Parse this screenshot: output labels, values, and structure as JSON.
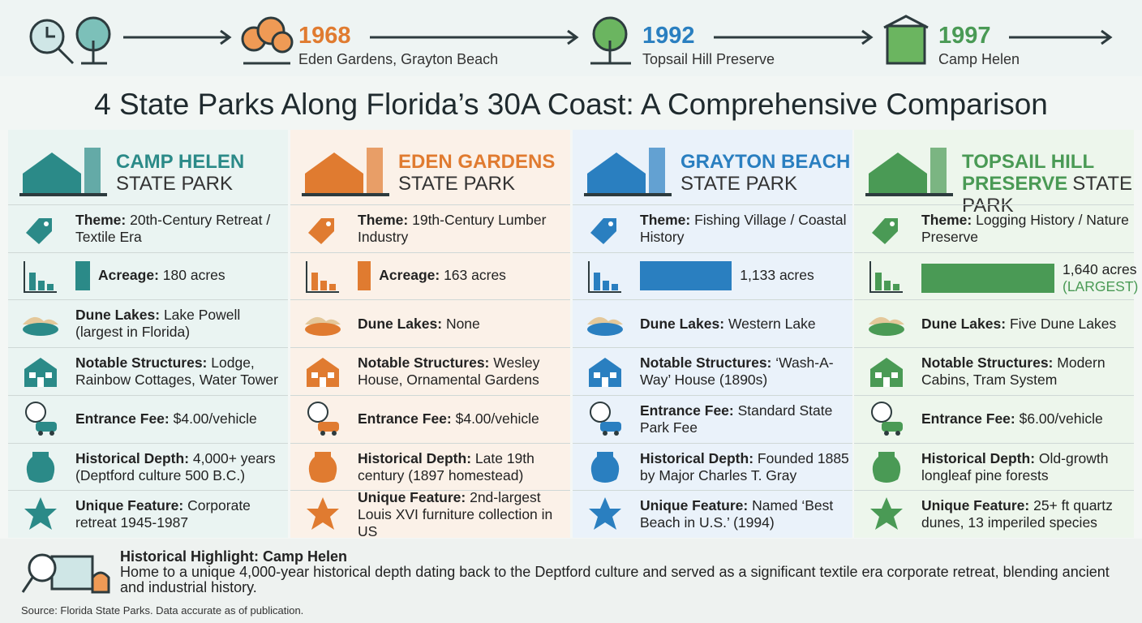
{
  "timeline": [
    {
      "year": "1968",
      "label": "Eden Gardens, Grayton Beach",
      "color": "#e07b30"
    },
    {
      "year": "1992",
      "label": "Topsail Hill Preserve",
      "color": "#2a7fc0"
    },
    {
      "year": "1997",
      "label": "Camp Helen",
      "color": "#4a9a55"
    }
  ],
  "title": "4 State Parks Along Florida’s 30A Coast: A Comprehensive Comparison",
  "parks": [
    {
      "color": "#2b8a88",
      "bg": "#eaf4f2",
      "name_lines": [
        [
          {
            "text": "CAMP HELEN",
            "accent": true
          }
        ],
        [
          {
            "text": "STATE PARK",
            "accent": false
          }
        ]
      ],
      "rows": [
        {
          "label": "Theme:",
          "text": "20th-Century Retreat / Textile Era"
        },
        {
          "label": "Acreage:",
          "value": 180,
          "text": "180 acres"
        },
        {
          "label": "Dune Lakes:",
          "text": "Lake Powell (largest in Florida)"
        },
        {
          "label": "Notable Structures:",
          "text": "Lodge, Rainbow Cottages, Water Tower"
        },
        {
          "label": "Entrance Fee:",
          "text": "$4.00/vehicle"
        },
        {
          "label": "Historical Depth:",
          "text": "4,000+ years (Deptford culture 500 B.C.)"
        },
        {
          "label": "Unique Feature:",
          "text": "Corporate retreat 1945-1987"
        }
      ]
    },
    {
      "color": "#e07b30",
      "bg": "#fbf1e8",
      "name_lines": [
        [
          {
            "text": "EDEN GARDENS",
            "accent": true
          }
        ],
        [
          {
            "text": "STATE PARK",
            "accent": false
          }
        ]
      ],
      "rows": [
        {
          "label": "Theme:",
          "text": "19th-Century Lumber Industry"
        },
        {
          "label": "Acreage:",
          "value": 163,
          "text": "163 acres"
        },
        {
          "label": "Dune Lakes:",
          "text": "None"
        },
        {
          "label": "Notable Structures:",
          "text": "Wesley House, Ornamental Gardens"
        },
        {
          "label": "Entrance Fee:",
          "text": "$4.00/vehicle"
        },
        {
          "label": "Historical Depth:",
          "text": "Late 19th century (1897 homestead)"
        },
        {
          "label": "Unique Feature:",
          "text": "2nd-largest Louis XVI furniture collection in US"
        }
      ]
    },
    {
      "color": "#2a7fc0",
      "bg": "#eaf2fa",
      "name_lines": [
        [
          {
            "text": "GRAYTON BEACH",
            "accent": true
          }
        ],
        [
          {
            "text": "STATE PARK",
            "accent": false
          }
        ]
      ],
      "rows": [
        {
          "label": "Theme:",
          "text": "Fishing Village / Coastal History"
        },
        {
          "value": 1133,
          "text": "1,133 acres"
        },
        {
          "label": "Dune Lakes:",
          "text": "Western Lake"
        },
        {
          "label": "Notable Structures:",
          "text": "‘Wash-A-Way’ House (1890s)"
        },
        {
          "label": "Entrance Fee:",
          "text": "Standard State Park Fee"
        },
        {
          "label": "Historical Depth:",
          "text": "Founded 1885 by Major Charles T. Gray"
        },
        {
          "label": "Unique Feature:",
          "text": "Named ‘Best Beach in U.S.’ (1994)"
        }
      ]
    },
    {
      "color": "#4a9a55",
      "bg": "#edf6ec",
      "name_lines": [
        [
          {
            "text": "TOPSAIL HILL",
            "accent": true
          }
        ],
        [
          {
            "text": "PRESERVE",
            "accent": true
          },
          {
            "text": "STATE PARK",
            "accent": false
          }
        ]
      ],
      "rows": [
        {
          "label": "Theme:",
          "text": "Logging History / Nature Preserve"
        },
        {
          "value": 1640,
          "text": "1,640 acres",
          "note": "(LARGEST)"
        },
        {
          "label": "Dune Lakes:",
          "text": "Five Dune Lakes"
        },
        {
          "label": "Notable Structures:",
          "text": "Modern Cabins, Tram System"
        },
        {
          "label": "Entrance Fee:",
          "text": "$6.00/vehicle"
        },
        {
          "label": "Historical Depth:",
          "text": "Old-growth longleaf pine forests"
        },
        {
          "label": "Unique Feature:",
          "text": "25+ ft quartz dunes, 13 imperiled species"
        }
      ]
    }
  ],
  "highlight": {
    "title": "Historical Highlight: Camp Helen",
    "text": "Home to a unique 4,000-year historical depth dating back to the Deptford culture and served as a significant textile era corporate retreat, blending ancient and industrial history."
  },
  "source": "Source: Florida State Parks. Data accurate as of publication."
}
